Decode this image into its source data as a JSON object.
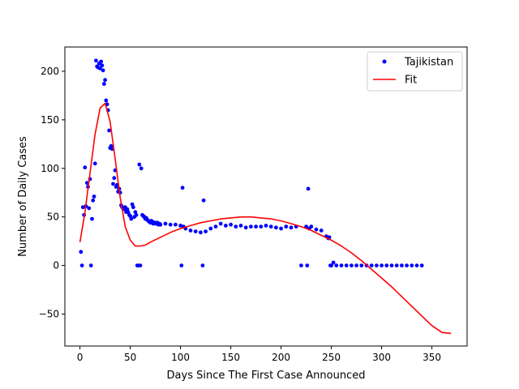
{
  "chart_data": {
    "type": "scatter",
    "title": "",
    "xlabel": "Days Since The First Case Announced",
    "ylabel": "Number of Daily Cases",
    "xlim": [
      -15,
      385
    ],
    "ylim": [
      -83,
      225
    ],
    "xticks": [
      0,
      50,
      100,
      150,
      200,
      250,
      300,
      350
    ],
    "yticks": [
      -50,
      0,
      50,
      100,
      150,
      200
    ],
    "grid": false,
    "legend_position": "top-right",
    "series": [
      {
        "name": "Tajikistan",
        "kind": "scatter",
        "color": "#0000ff",
        "x": [
          1,
          2,
          3,
          4,
          5,
          6,
          7,
          8,
          9,
          10,
          11,
          12,
          13,
          14,
          15,
          16,
          17,
          18,
          19,
          20,
          21,
          22,
          23,
          24,
          25,
          26,
          27,
          28,
          29,
          30,
          31,
          32,
          33,
          34,
          35,
          36,
          37,
          38,
          39,
          40,
          41,
          42,
          43,
          44,
          45,
          46,
          47,
          48,
          49,
          50,
          51,
          52,
          53,
          54,
          55,
          56,
          57,
          58,
          59,
          60,
          61,
          62,
          63,
          64,
          65,
          66,
          67,
          68,
          69,
          70,
          71,
          72,
          73,
          74,
          75,
          76,
          77,
          78,
          79,
          80,
          85,
          90,
          95,
          100,
          101,
          102,
          103,
          105,
          110,
          115,
          120,
          122,
          123,
          125,
          130,
          135,
          140,
          145,
          150,
          155,
          160,
          165,
          170,
          175,
          180,
          185,
          190,
          195,
          200,
          205,
          210,
          215,
          220,
          225,
          226,
          227,
          228,
          230,
          235,
          240,
          245,
          247,
          248,
          249,
          250,
          252,
          255,
          260,
          265,
          270,
          275,
          280,
          285,
          290,
          295,
          300,
          305,
          310,
          315,
          320,
          325,
          330,
          335,
          340
        ],
        "y": [
          14,
          0,
          60,
          52,
          101,
          61,
          85,
          81,
          59,
          89,
          0,
          48,
          67,
          71,
          105,
          211,
          205,
          204,
          208,
          203,
          210,
          206,
          201,
          187,
          191,
          170,
          166,
          160,
          139,
          121,
          123,
          120,
          84,
          90,
          98,
          81,
          83,
          76,
          79,
          75,
          62,
          60,
          59,
          58,
          60,
          55,
          58,
          55,
          52,
          51,
          48,
          63,
          60,
          50,
          55,
          52,
          0,
          0,
          104,
          0,
          100,
          52,
          51,
          50,
          48,
          49,
          47,
          46,
          45,
          44,
          46,
          45,
          43,
          44,
          44,
          43,
          44,
          42,
          43,
          42,
          43,
          42,
          42,
          41,
          0,
          80,
          40,
          38,
          36,
          35,
          34,
          0,
          67,
          35,
          38,
          40,
          43,
          41,
          42,
          40,
          41,
          39,
          40,
          40,
          40,
          41,
          40,
          39,
          38,
          40,
          39,
          40,
          0,
          40,
          0,
          79,
          38,
          40,
          37,
          36,
          30,
          28,
          29,
          0,
          0,
          3,
          0,
          0,
          0,
          0,
          0,
          0,
          0,
          0,
          0,
          0,
          0,
          0,
          0,
          0,
          0,
          0,
          0,
          0
        ]
      },
      {
        "name": "Fit",
        "kind": "line",
        "color": "#ff0000",
        "x": [
          0,
          5,
          10,
          15,
          20,
          25,
          30,
          35,
          40,
          45,
          50,
          55,
          60,
          65,
          70,
          80,
          90,
          100,
          110,
          120,
          130,
          140,
          150,
          160,
          170,
          180,
          190,
          200,
          210,
          220,
          230,
          240,
          250,
          260,
          270,
          280,
          290,
          300,
          310,
          320,
          330,
          340,
          350,
          360,
          369
        ],
        "y": [
          24,
          55,
          95,
          135,
          162,
          167,
          148,
          110,
          70,
          40,
          26,
          20,
          20,
          21,
          24,
          29,
          34,
          38,
          41,
          44,
          46,
          48,
          49,
          50,
          50,
          49,
          48,
          46,
          43,
          40,
          36,
          31,
          26,
          20,
          13,
          5,
          -4,
          -13,
          -22,
          -32,
          -42,
          -52,
          -62,
          -69,
          -70
        ]
      }
    ]
  }
}
